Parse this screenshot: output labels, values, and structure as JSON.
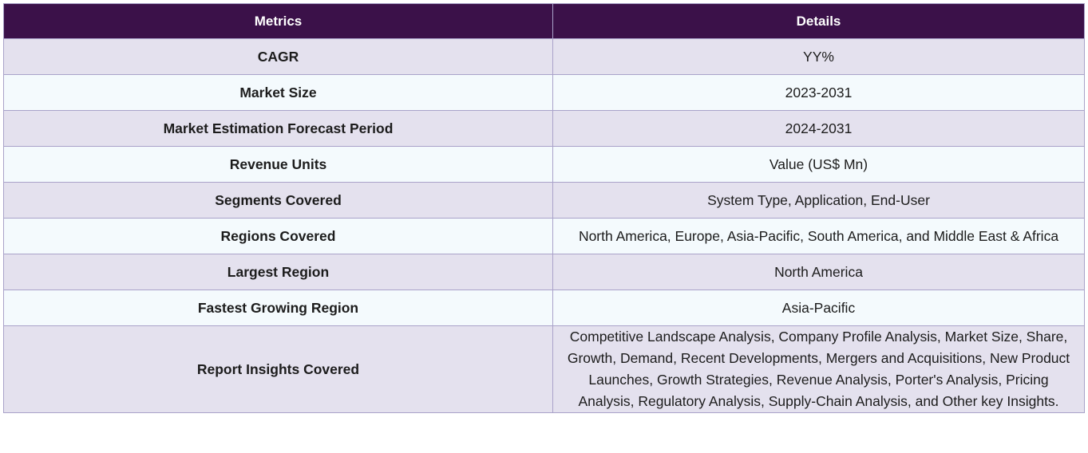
{
  "table": {
    "headers": [
      "Metrics",
      "Details"
    ],
    "rows": [
      {
        "metric": "CAGR",
        "detail": "YY%"
      },
      {
        "metric": "Market Size",
        "detail": "2023-2031"
      },
      {
        "metric": "Market Estimation Forecast Period",
        "detail": "2024-2031"
      },
      {
        "metric": "Revenue Units",
        "detail": "Value (US$ Mn)"
      },
      {
        "metric": "Segments Covered",
        "detail": "System Type, Application, End-User"
      },
      {
        "metric": "Regions Covered",
        "detail": "North America, Europe, Asia-Pacific, South America, and Middle East & Africa"
      },
      {
        "metric": "Largest Region",
        "detail": "North America"
      },
      {
        "metric": "Fastest Growing Region",
        "detail": "Asia-Pacific"
      },
      {
        "metric": "Report Insights Covered",
        "detail": "Competitive Landscape Analysis, Company Profile Analysis, Market Size, Share, Growth, Demand, Recent Developments, Mergers and Acquisitions, New Product Launches, Growth Strategies, Revenue Analysis, Porter's Analysis, Pricing Analysis, Regulatory Analysis, Supply-Chain Analysis, and Other key Insights."
      }
    ]
  },
  "colors": {
    "header_bg": "#3b1149",
    "row_shaded": "#e4e1ee",
    "row_light": "#f4fafd",
    "border": "#a9a2c9"
  }
}
